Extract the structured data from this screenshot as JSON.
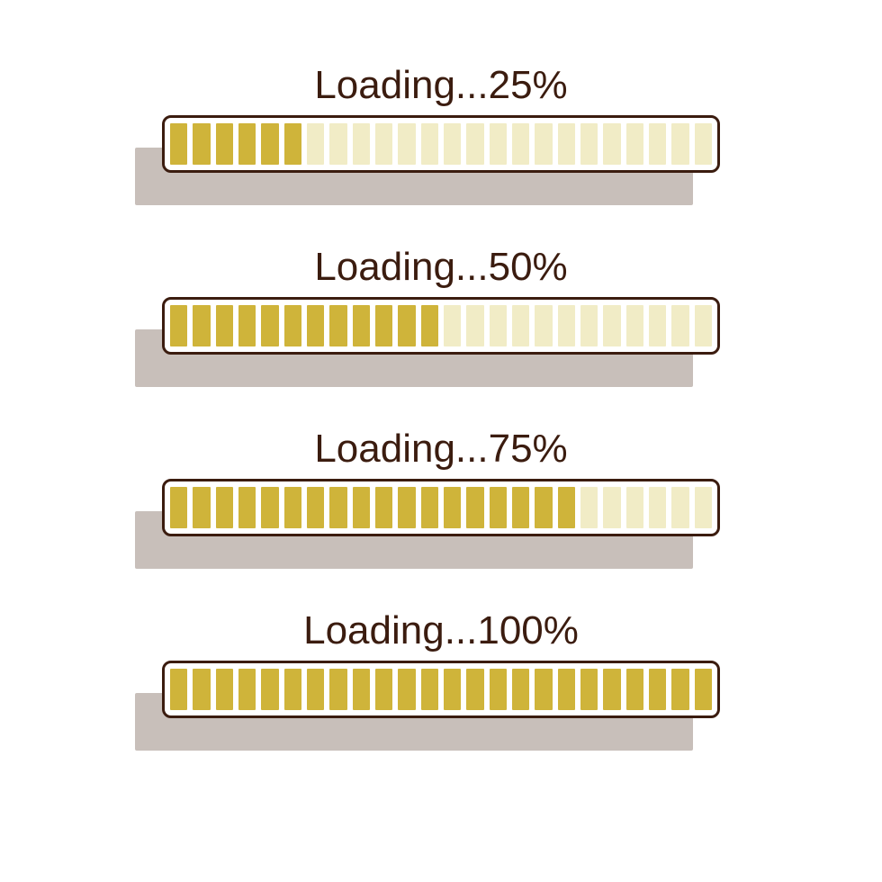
{
  "background_color": "#ffffff",
  "label_color": "#3b1c0f",
  "border_color": "#3b1c0f",
  "border_width": 3,
  "segment_count": 24,
  "filled_color": "#cfb43a",
  "empty_color": "#f1ecc6",
  "shadow_color": "#c8bfba",
  "bars": [
    {
      "label": "Loading...25%",
      "filled": 6
    },
    {
      "label": "Loading...50%",
      "filled": 12
    },
    {
      "label": "Loading...75%",
      "filled": 18
    },
    {
      "label": "Loading...100%",
      "filled": 24
    }
  ]
}
